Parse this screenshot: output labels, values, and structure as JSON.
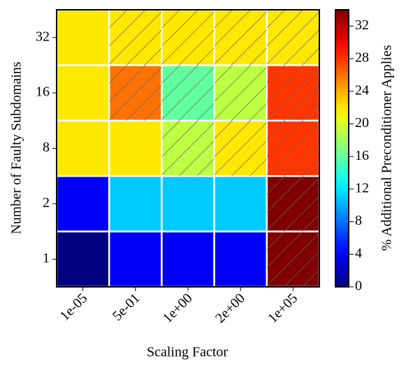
{
  "chart_data": {
    "type": "heatmap",
    "x_label": "Scaling Factor",
    "y_label": "Number of Faulty Subdomains",
    "colorbar_label": "% Additional Preconditioner Applies",
    "categories": [
      "1e-05",
      "5e-01",
      "1e+00",
      "2e+00",
      "1e+05"
    ],
    "y_categories": [
      "1",
      "2",
      "8",
      "16",
      "32"
    ],
    "values": [
      [
        0,
        4,
        4,
        4,
        34
      ],
      [
        4,
        11,
        11,
        11,
        34
      ],
      [
        22,
        22,
        19,
        22,
        28
      ],
      [
        22,
        26,
        16,
        19,
        28
      ],
      [
        22,
        22,
        22,
        22,
        22
      ]
    ],
    "hatched": [
      [
        false,
        false,
        false,
        false,
        true
      ],
      [
        false,
        false,
        false,
        false,
        true
      ],
      [
        false,
        false,
        true,
        true,
        true
      ],
      [
        false,
        true,
        true,
        true,
        true
      ],
      [
        false,
        true,
        true,
        true,
        true
      ]
    ],
    "colormap": "jet",
    "zlim": [
      0,
      34
    ],
    "zticks": [
      0,
      4,
      8,
      12,
      16,
      20,
      24,
      28,
      32
    ]
  }
}
